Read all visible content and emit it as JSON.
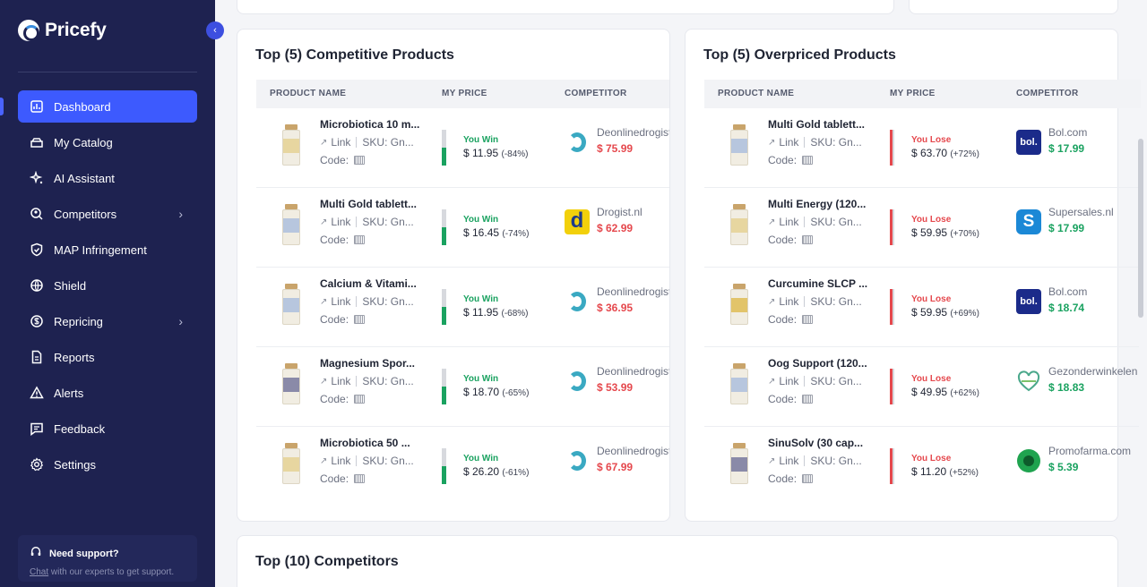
{
  "app": {
    "name": "Pricefy"
  },
  "sidebar": {
    "items": [
      {
        "label": "Dashboard",
        "icon": "dashboard-icon",
        "active": true
      },
      {
        "label": "My Catalog",
        "icon": "catalog-icon"
      },
      {
        "label": "AI Assistant",
        "icon": "sparkle-icon"
      },
      {
        "label": "Competitors",
        "icon": "competitors-icon",
        "chevron": true
      },
      {
        "label": "MAP Infringement",
        "icon": "shield-check-icon"
      },
      {
        "label": "Shield",
        "icon": "globe-icon"
      },
      {
        "label": "Repricing",
        "icon": "repricing-icon",
        "chevron": true
      },
      {
        "label": "Reports",
        "icon": "report-icon"
      },
      {
        "label": "Alerts",
        "icon": "alert-icon"
      },
      {
        "label": "Feedback",
        "icon": "feedback-icon"
      },
      {
        "label": "Settings",
        "icon": "gear-icon"
      }
    ],
    "support": {
      "title": "Need support?",
      "link": "Chat",
      "text": " with our experts to get support."
    }
  },
  "competitive": {
    "title": "Top (5) Competitive Products",
    "headers": [
      "PRODUCT NAME",
      "MY PRICE",
      "COMPETITOR"
    ],
    "rows": [
      {
        "name": "Microbiotica 10 m...",
        "link": "Link",
        "sku": "SKU: Gn...",
        "code": "Code:",
        "status": "You Win",
        "price": "$ 11.95",
        "pct": "(-84%)",
        "competitor": "Deonlinedrogist.nl",
        "comp_price": "$ 75.99",
        "logo": "deonlinedrogist",
        "label": "c1"
      },
      {
        "name": "Multi Gold tablett...",
        "link": "Link",
        "sku": "SKU: Gn...",
        "code": "Code:",
        "status": "You Win",
        "price": "$ 16.45",
        "pct": "(-74%)",
        "competitor": "Drogist.nl",
        "comp_price": "$ 62.99",
        "logo": "drogist",
        "label": "c2"
      },
      {
        "name": "Calcium & Vitami...",
        "link": "Link",
        "sku": "SKU: Gn...",
        "code": "Code:",
        "status": "You Win",
        "price": "$ 11.95",
        "pct": "(-68%)",
        "competitor": "Deonlinedrogist.nl",
        "comp_price": "$ 36.95",
        "logo": "deonlinedrogist",
        "label": "c2"
      },
      {
        "name": "Magnesium Spor...",
        "link": "Link",
        "sku": "SKU: Gn...",
        "code": "Code:",
        "status": "You Win",
        "price": "$ 18.70",
        "pct": "(-65%)",
        "competitor": "Deonlinedrogist.nl",
        "comp_price": "$ 53.99",
        "logo": "deonlinedrogist",
        "label": "c4"
      },
      {
        "name": "Microbiotica 50 ...",
        "link": "Link",
        "sku": "SKU: Gn...",
        "code": "Code:",
        "status": "You Win",
        "price": "$ 26.20",
        "pct": "(-61%)",
        "competitor": "Deonlinedrogist.nl",
        "comp_price": "$ 67.99",
        "logo": "deonlinedrogist",
        "label": "c1"
      }
    ]
  },
  "overpriced": {
    "title": "Top (5) Overpriced Products",
    "headers": [
      "PRODUCT NAME",
      "MY PRICE",
      "COMPETITOR"
    ],
    "rows": [
      {
        "name": "Multi Gold tablett...",
        "link": "Link",
        "sku": "SKU: Gn...",
        "code": "Code:",
        "status": "You Lose",
        "price": "$ 63.70",
        "pct": "(+72%)",
        "competitor": "Bol.com",
        "comp_price": "$ 17.99",
        "logo": "bol",
        "label": "c2"
      },
      {
        "name": "Multi Energy (120...",
        "link": "Link",
        "sku": "SKU: Gn...",
        "code": "Code:",
        "status": "You Lose",
        "price": "$ 59.95",
        "pct": "(+70%)",
        "competitor": "Supersales.nl",
        "comp_price": "$ 17.99",
        "logo": "supersales",
        "label": "c1"
      },
      {
        "name": "Curcumine SLCP ...",
        "link": "Link",
        "sku": "SKU: Gn...",
        "code": "Code:",
        "status": "You Lose",
        "price": "$ 59.95",
        "pct": "(+69%)",
        "competitor": "Bol.com",
        "comp_price": "$ 18.74",
        "logo": "bol",
        "label": "c3"
      },
      {
        "name": "Oog Support (120...",
        "link": "Link",
        "sku": "SKU: Gn...",
        "code": "Code:",
        "status": "You Lose",
        "price": "$ 49.95",
        "pct": "(+62%)",
        "competitor": "Gezonderwinkelen",
        "comp_price": "$ 18.83",
        "logo": "gezonder",
        "label": "c2"
      },
      {
        "name": "SinuSolv (30 cap...",
        "link": "Link",
        "sku": "SKU: Gn...",
        "code": "Code:",
        "status": "You Lose",
        "price": "$ 11.20",
        "pct": "(+52%)",
        "competitor": "Promofarma.com",
        "comp_price": "$ 5.39",
        "logo": "promofarma",
        "label": "c4"
      }
    ]
  },
  "competitors_card": {
    "title": "Top (10) Competitors"
  },
  "colors": {
    "sidebar": "#1e2250",
    "accent": "#3d5afe",
    "win": "#1aa260",
    "lose": "#e5484d"
  },
  "logo_text": {
    "bol": "bol.",
    "drogist": "d",
    "supersales": "S"
  }
}
